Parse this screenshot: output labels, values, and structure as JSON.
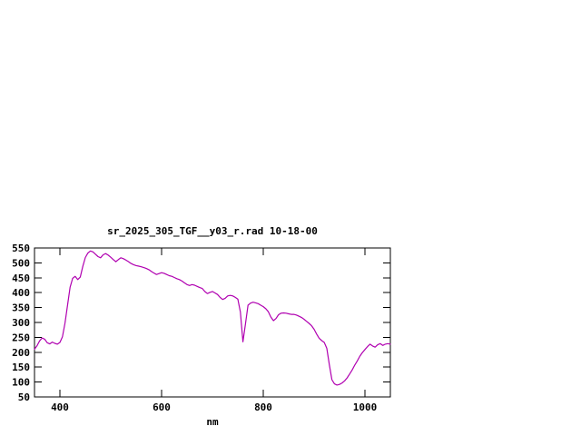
{
  "chart_data": {
    "type": "line",
    "title": "sr_2025_305_TGF__y03_r.rad 10-18-00",
    "xlabel": "nm",
    "ylabel": "",
    "xlim": [
      350,
      1050
    ],
    "ylim": [
      50,
      550
    ],
    "x_ticks": [
      400,
      600,
      800,
      1000
    ],
    "y_ticks": [
      50,
      100,
      150,
      200,
      250,
      300,
      350,
      400,
      450,
      500,
      550
    ],
    "grid": false,
    "legend": "none",
    "line_color": "#b000b0",
    "axis_color": "#000000",
    "background_color": "#ffffff",
    "series": [
      {
        "name": "sr_2025_305_TGF__y03_r.rad",
        "x": [
          350,
          355,
          360,
          365,
          370,
          375,
          380,
          385,
          390,
          395,
          400,
          405,
          410,
          415,
          420,
          425,
          430,
          435,
          440,
          445,
          450,
          455,
          460,
          465,
          470,
          475,
          480,
          485,
          490,
          495,
          500,
          505,
          510,
          515,
          520,
          525,
          530,
          535,
          540,
          545,
          550,
          555,
          560,
          565,
          570,
          575,
          580,
          585,
          590,
          595,
          600,
          605,
          610,
          615,
          620,
          625,
          630,
          635,
          640,
          645,
          650,
          655,
          660,
          665,
          670,
          675,
          680,
          685,
          690,
          695,
          700,
          705,
          710,
          715,
          720,
          725,
          730,
          735,
          740,
          745,
          750,
          755,
          760,
          765,
          770,
          775,
          780,
          785,
          790,
          795,
          800,
          805,
          810,
          815,
          820,
          825,
          830,
          835,
          840,
          845,
          850,
          855,
          860,
          865,
          870,
          875,
          880,
          885,
          890,
          895,
          900,
          905,
          910,
          915,
          920,
          925,
          930,
          935,
          940,
          945,
          950,
          955,
          960,
          965,
          970,
          975,
          980,
          985,
          990,
          995,
          1000,
          1005,
          1010,
          1015,
          1020,
          1025,
          1030,
          1035,
          1040,
          1045,
          1050
        ],
        "y": [
          210,
          222,
          238,
          248,
          244,
          232,
          228,
          234,
          230,
          227,
          233,
          252,
          298,
          358,
          418,
          448,
          455,
          444,
          452,
          488,
          518,
          533,
          540,
          537,
          529,
          521,
          517,
          527,
          531,
          526,
          519,
          511,
          504,
          511,
          517,
          514,
          509,
          504,
          498,
          494,
          491,
          489,
          487,
          484,
          481,
          477,
          471,
          466,
          461,
          464,
          467,
          465,
          461,
          457,
          455,
          451,
          447,
          444,
          439,
          433,
          427,
          424,
          427,
          425,
          421,
          417,
          414,
          404,
          397,
          401,
          404,
          399,
          394,
          384,
          377,
          381,
          389,
          391,
          389,
          384,
          378,
          335,
          235,
          295,
          358,
          365,
          368,
          366,
          363,
          358,
          353,
          346,
          336,
          318,
          306,
          313,
          326,
          331,
          332,
          331,
          329,
          327,
          327,
          325,
          321,
          317,
          311,
          304,
          297,
          289,
          277,
          261,
          247,
          239,
          233,
          213,
          158,
          108,
          94,
          90,
          92,
          97,
          104,
          114,
          127,
          141,
          157,
          171,
          187,
          199,
          209,
          219,
          227,
          221,
          217,
          225,
          229,
          223,
          227,
          229,
          227
        ]
      }
    ]
  }
}
